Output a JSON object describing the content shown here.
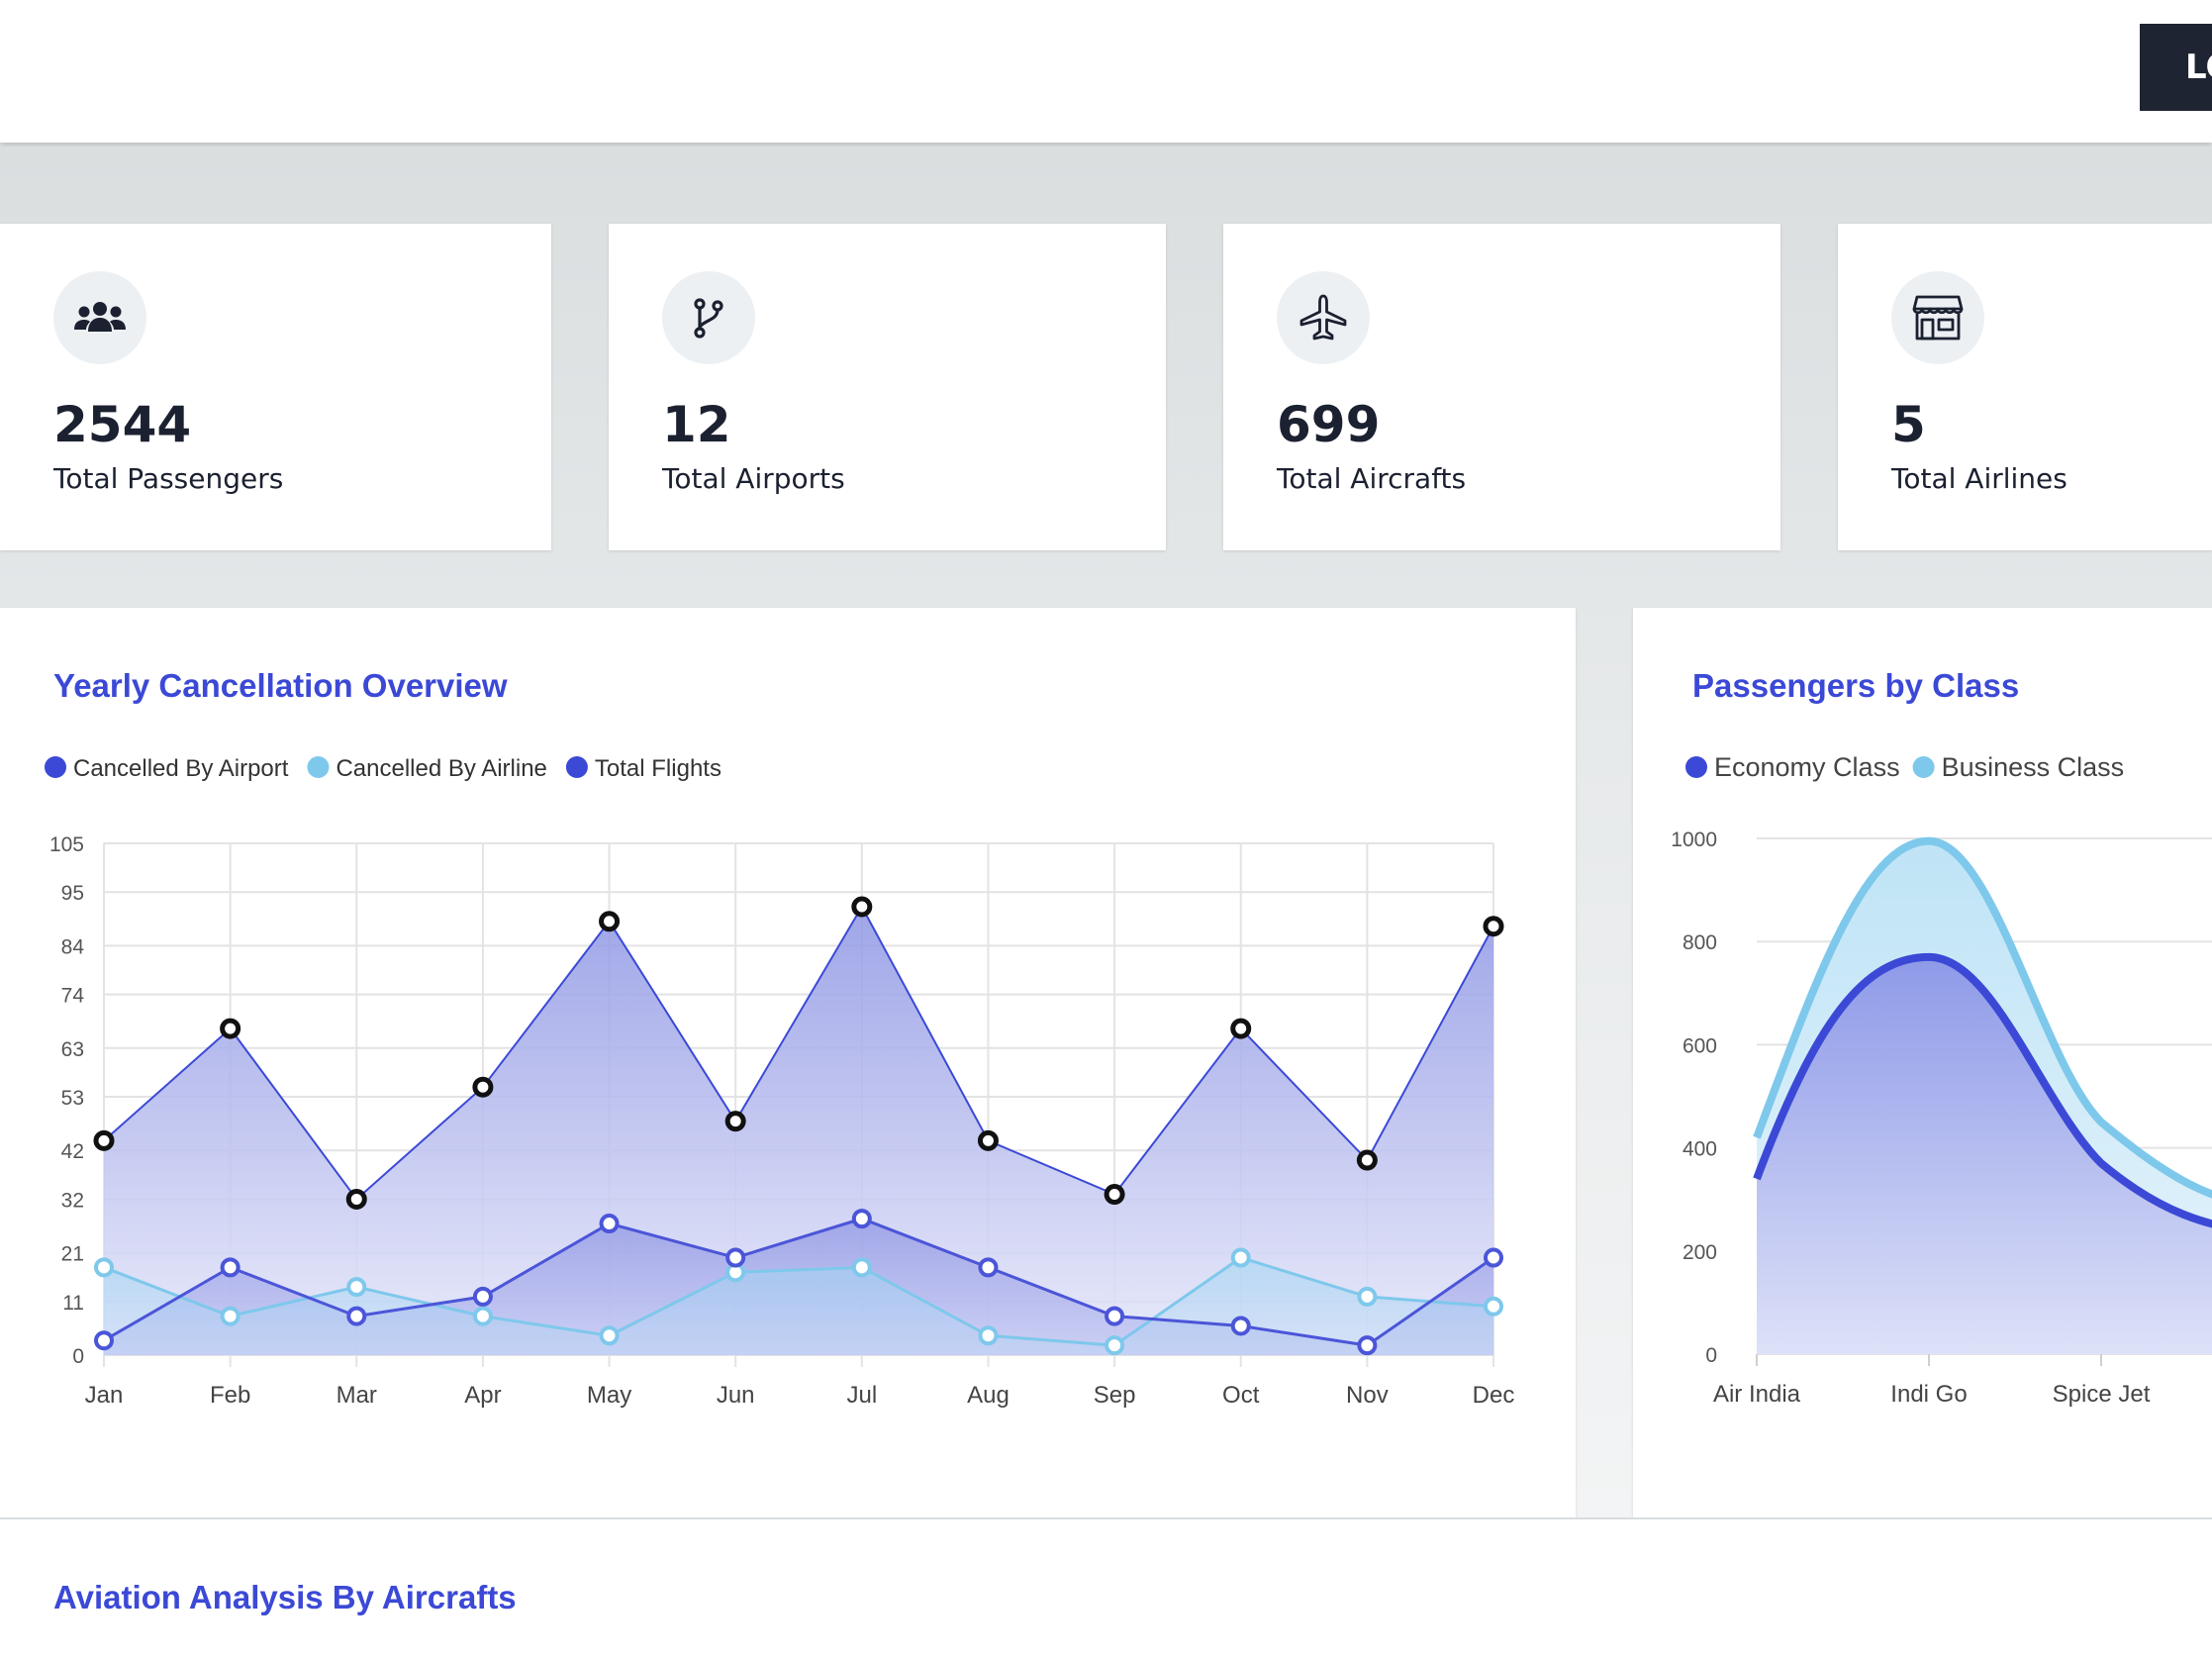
{
  "header": {
    "logout_label": "LOGOUT"
  },
  "stats": [
    {
      "value": "2544",
      "label": "Total Passengers",
      "icon": "users-icon"
    },
    {
      "value": "12",
      "label": "Total Airports",
      "icon": "route-icon"
    },
    {
      "value": "699",
      "label": "Total Aircrafts",
      "icon": "plane-icon"
    },
    {
      "value": "5",
      "label": "Total Airlines",
      "icon": "store-icon"
    }
  ],
  "cancellation": {
    "title": "Yearly Cancellation Overview"
  },
  "class_panel": {
    "title": "Passengers by Class"
  },
  "bottom": {
    "title": "Aviation Analysis By Aircrafts"
  },
  "chart_data": [
    {
      "type": "line",
      "title": "Yearly Cancellation Overview",
      "categories": [
        "Jan",
        "Feb",
        "Mar",
        "Apr",
        "May",
        "Jun",
        "Jul",
        "Aug",
        "Sep",
        "Oct",
        "Nov",
        "Dec"
      ],
      "ylim": [
        0,
        105
      ],
      "yticks": [
        "0",
        "11",
        "21",
        "32",
        "42",
        "53",
        "63",
        "74",
        "84",
        "95",
        "105"
      ],
      "grid": true,
      "legend_position": "top-left",
      "series": [
        {
          "name": "Cancelled By Airport",
          "color": "#3b49d6",
          "values": [
            3,
            18,
            8,
            12,
            27,
            20,
            28,
            18,
            8,
            6,
            2,
            20
          ]
        },
        {
          "name": "Cancelled By Airline",
          "color": "#7ec8ec",
          "values": [
            18,
            8,
            14,
            8,
            4,
            17,
            18,
            4,
            2,
            20,
            12,
            10
          ]
        },
        {
          "name": "Total Flights",
          "color": "#3b49d6",
          "values": [
            44,
            67,
            32,
            55,
            89,
            48,
            92,
            44,
            33,
            67,
            40,
            88
          ]
        }
      ]
    },
    {
      "type": "area",
      "title": "Passengers by Class",
      "categories": [
        "Air India",
        "Indi Go",
        "Spice Jet"
      ],
      "ylim": [
        0,
        1000
      ],
      "yticks": [
        "0",
        "200",
        "400",
        "600",
        "800",
        "1000"
      ],
      "grid": true,
      "legend_position": "top-left",
      "series": [
        {
          "name": "Economy Class",
          "color": "#3b49d6",
          "values": [
            340,
            770,
            370
          ]
        },
        {
          "name": "Business Class",
          "color": "#7ec8ec",
          "values": [
            420,
            995,
            450
          ]
        }
      ]
    }
  ]
}
